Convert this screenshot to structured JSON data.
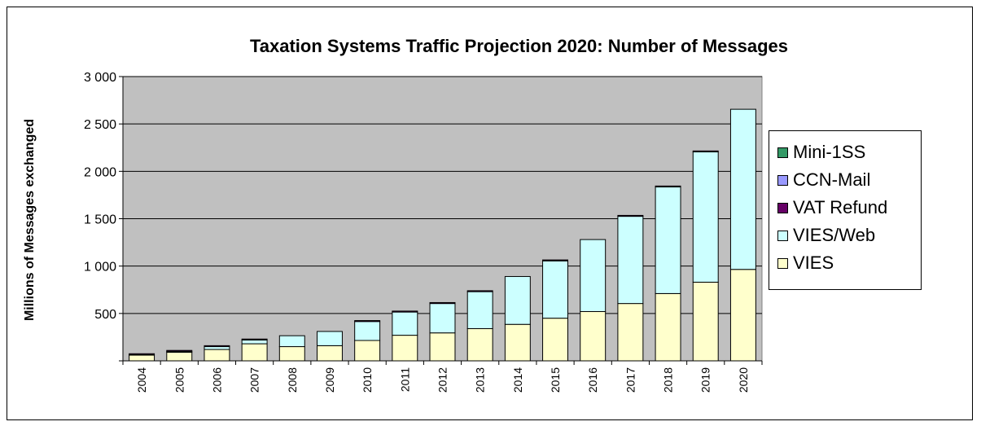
{
  "chart_data": {
    "type": "bar",
    "stacked": true,
    "title": "Taxation Systems Traffic Projection 2020: Number of Messages",
    "xlabel": "",
    "ylabel": "Millions of Messages exchanged",
    "ylim": [
      0,
      3000
    ],
    "yticks": [
      0,
      500,
      1000,
      1500,
      2000,
      2500,
      3000
    ],
    "ytick_labels": [
      "",
      "500",
      "1 000",
      "1 500",
      "2 000",
      "2 500",
      "3 000"
    ],
    "grid": true,
    "legend_position": "right",
    "categories": [
      "2004",
      "2005",
      "2006",
      "2007",
      "2008",
      "2009",
      "2010",
      "2011",
      "2012",
      "2013",
      "2014",
      "2015",
      "2016",
      "2017",
      "2018",
      "2019",
      "2020"
    ],
    "series": [
      {
        "name": "VIES",
        "color": "#FFFFCC",
        "values": [
          60,
          90,
          120,
          180,
          150,
          160,
          215,
          270,
          295,
          340,
          385,
          450,
          520,
          605,
          710,
          830,
          965
        ]
      },
      {
        "name": "VIES/Web",
        "color": "#CCFFFF",
        "values": [
          5,
          10,
          30,
          40,
          115,
          150,
          200,
          245,
          310,
          390,
          505,
          605,
          760,
          920,
          1125,
          1375,
          1690
        ]
      },
      {
        "name": "VAT Refund",
        "color": "#660066",
        "values": [
          10,
          10,
          10,
          10,
          0,
          0,
          10,
          10,
          10,
          10,
          0,
          10,
          0,
          10,
          10,
          10,
          0
        ]
      },
      {
        "name": "CCN-Mail",
        "color": "#9999FF",
        "values": [
          0,
          0,
          0,
          0,
          0,
          0,
          0,
          0,
          0,
          0,
          0,
          0,
          0,
          0,
          0,
          0,
          0
        ]
      },
      {
        "name": "Mini-1SS",
        "color": "#339966",
        "values": [
          0,
          0,
          0,
          0,
          0,
          0,
          0,
          0,
          0,
          0,
          0,
          0,
          0,
          0,
          0,
          0,
          0
        ]
      }
    ],
    "legend_order": [
      "Mini-1SS",
      "CCN-Mail",
      "VAT Refund",
      "VIES/Web",
      "VIES"
    ],
    "plot_background": "#C0C0C0"
  }
}
